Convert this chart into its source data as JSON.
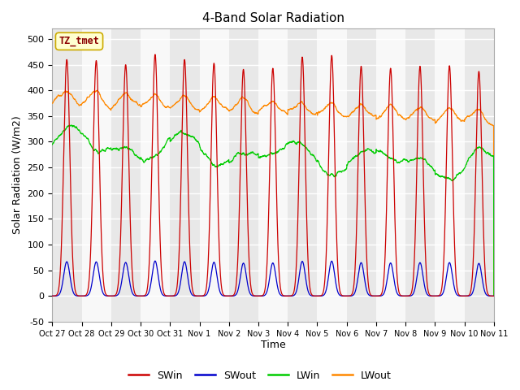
{
  "title": "4-Band Solar Radiation",
  "ylabel": "Solar Radiation (W/m2)",
  "xlabel": "Time",
  "ylim": [
    -50,
    520
  ],
  "yticks": [
    -50,
    0,
    50,
    100,
    150,
    200,
    250,
    300,
    350,
    400,
    450,
    500
  ],
  "colors": {
    "SWin": "#cc0000",
    "SWout": "#0000cc",
    "LWin": "#00cc00",
    "LWout": "#ff8800"
  },
  "fig_bg": "#ffffff",
  "plot_bg_odd": "#e8e8e8",
  "plot_bg_even": "#f8f8f8",
  "label_box": "TZ_tmet",
  "x_tick_labels": [
    "Oct 27",
    "Oct 28",
    "Oct 29",
    "Oct 30",
    "Oct 31",
    "Nov 1",
    "Nov 2",
    "Nov 3",
    "Nov 4",
    "Nov 5",
    "Nov 6",
    "Nov 7",
    "Nov 8",
    "Nov 9",
    "Nov 10",
    "Nov 11"
  ],
  "n_days": 15
}
